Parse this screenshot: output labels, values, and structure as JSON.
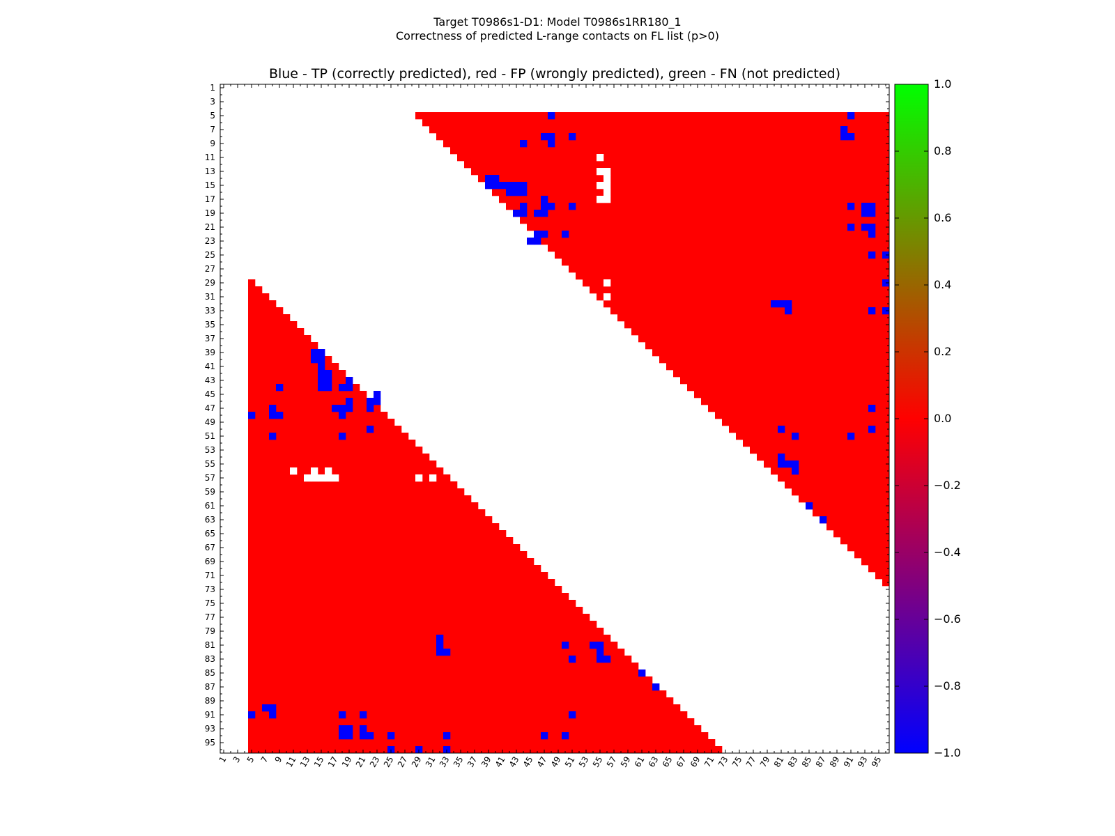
{
  "page": {
    "title_line1": "Target T0986s1-D1: Model T0986s1RR180_1",
    "title_line2": "Correctness of predicted L-range contacts on FL list (p>0)",
    "plot_title": "Blue - TP (correctly predicted), red - FP (wrongly predicted), green - FN (not predicted)"
  },
  "colors": {
    "tp": "#0000ff",
    "fp": "#ff0000",
    "fn": "#00ff00",
    "background": "#ffffff"
  },
  "chart_data": {
    "type": "heatmap",
    "n_residues": 96,
    "x_ticks": [
      1,
      3,
      5,
      7,
      9,
      11,
      13,
      15,
      17,
      19,
      21,
      23,
      25,
      27,
      29,
      31,
      33,
      35,
      37,
      39,
      41,
      43,
      45,
      47,
      49,
      51,
      53,
      55,
      57,
      59,
      61,
      63,
      65,
      67,
      69,
      71,
      73,
      75,
      77,
      79,
      81,
      83,
      85,
      87,
      89,
      91,
      93,
      95
    ],
    "y_ticks": [
      1,
      3,
      5,
      7,
      9,
      11,
      13,
      15,
      17,
      19,
      21,
      23,
      25,
      27,
      29,
      31,
      33,
      35,
      37,
      39,
      41,
      43,
      45,
      47,
      49,
      51,
      53,
      55,
      57,
      59,
      61,
      63,
      65,
      67,
      69,
      71,
      73,
      75,
      77,
      79,
      81,
      83,
      85,
      87,
      89,
      91,
      93,
      95
    ],
    "colorbar": {
      "range": [
        -1.0,
        1.0
      ],
      "ticks": [
        "1.0",
        "0.8",
        "0.6",
        "0.4",
        "0.2",
        "0.0",
        "−0.2",
        "−0.4",
        "−0.6",
        "−0.8",
        "−1.0"
      ],
      "stops": [
        "#0000ff",
        "#ff0000",
        "#00ff00"
      ]
    },
    "upper_region": {
      "start_row": 5,
      "start_col": 29,
      "diag_offset": 24,
      "row_extent": 72,
      "value": 0.0
    },
    "lower_region": {
      "start_col": 5,
      "start_row": 29,
      "diag_offset": 24,
      "col_extent": 72,
      "value": 0.0
    },
    "blanks": [
      [
        11,
        55
      ],
      [
        13,
        55
      ],
      [
        13,
        56
      ],
      [
        14,
        56
      ],
      [
        15,
        55
      ],
      [
        15,
        56
      ],
      [
        16,
        56
      ],
      [
        17,
        55
      ],
      [
        17,
        56
      ],
      [
        29,
        56
      ],
      [
        31,
        56
      ],
      [
        56,
        11
      ],
      [
        56,
        14
      ],
      [
        56,
        16
      ],
      [
        57,
        13
      ],
      [
        57,
        14
      ],
      [
        57,
        15
      ],
      [
        57,
        16
      ],
      [
        57,
        17
      ],
      [
        57,
        29
      ],
      [
        57,
        31
      ]
    ],
    "tp_contacts": [
      [
        5,
        48
      ],
      [
        5,
        91
      ],
      [
        7,
        90
      ],
      [
        8,
        47
      ],
      [
        8,
        48
      ],
      [
        8,
        51
      ],
      [
        8,
        90
      ],
      [
        8,
        91
      ],
      [
        9,
        44
      ],
      [
        9,
        48
      ],
      [
        14,
        39
      ],
      [
        14,
        40
      ],
      [
        15,
        39
      ],
      [
        15,
        40
      ],
      [
        15,
        41
      ],
      [
        15,
        42
      ],
      [
        15,
        43
      ],
      [
        15,
        44
      ],
      [
        16,
        42
      ],
      [
        16,
        43
      ],
      [
        16,
        44
      ],
      [
        17,
        47
      ],
      [
        18,
        44
      ],
      [
        18,
        47
      ],
      [
        18,
        48
      ],
      [
        18,
        51
      ],
      [
        18,
        91
      ],
      [
        18,
        93
      ],
      [
        18,
        94
      ],
      [
        19,
        43
      ],
      [
        19,
        44
      ],
      [
        19,
        46
      ],
      [
        19,
        47
      ],
      [
        19,
        93
      ],
      [
        19,
        94
      ],
      [
        21,
        91
      ],
      [
        21,
        93
      ],
      [
        21,
        94
      ],
      [
        22,
        46
      ],
      [
        22,
        47
      ],
      [
        22,
        50
      ],
      [
        22,
        94
      ],
      [
        23,
        45
      ],
      [
        23,
        46
      ],
      [
        25,
        94
      ],
      [
        25,
        96
      ],
      [
        29,
        96
      ],
      [
        32,
        80
      ],
      [
        32,
        81
      ],
      [
        32,
        82
      ],
      [
        33,
        82
      ],
      [
        33,
        94
      ],
      [
        33,
        96
      ],
      [
        47,
        94
      ],
      [
        50,
        81
      ],
      [
        50,
        94
      ],
      [
        51,
        83
      ],
      [
        51,
        91
      ],
      [
        54,
        81
      ],
      [
        55,
        81
      ],
      [
        55,
        82
      ],
      [
        55,
        83
      ],
      [
        56,
        83
      ],
      [
        61,
        85
      ],
      [
        63,
        87
      ]
    ]
  }
}
